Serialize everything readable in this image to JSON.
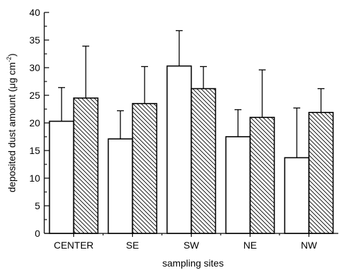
{
  "chart_data": {
    "type": "bar",
    "title": "",
    "xlabel": "sampling sites",
    "ylabel": {
      "prefix": "deposited dust amount (",
      "mu": "μ",
      "unit": "g cm",
      "exponent": "-2",
      "suffix": ")"
    },
    "categories": [
      "CENTER",
      "SE",
      "SW",
      "NE",
      "NW"
    ],
    "ylim": [
      0,
      40
    ],
    "yticks": [
      "0",
      "5",
      "10",
      "15",
      "20",
      "25",
      "30",
      "35",
      "40"
    ],
    "legend": "none",
    "grid": false,
    "series": [
      {
        "fill": "plain",
        "values": [
          20.3,
          17.1,
          30.3,
          17.5,
          13.7
        ],
        "errors": [
          6.1,
          5.1,
          6.4,
          4.9,
          9.0
        ]
      },
      {
        "fill": "hatched",
        "values": [
          24.5,
          23.5,
          26.2,
          21.0,
          21.9
        ],
        "errors": [
          9.4,
          6.7,
          4.0,
          8.6,
          4.3
        ]
      }
    ]
  }
}
